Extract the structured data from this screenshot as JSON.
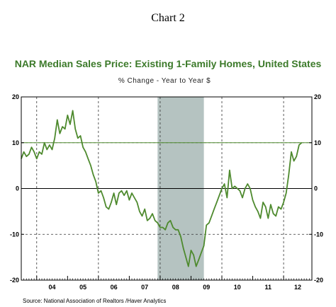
{
  "heading": "Chart 2",
  "source": "Source:  National Association of Realtors /Haver Analytics",
  "colors": {
    "title": "#3c7a2a",
    "series": "#4e8a2e",
    "recession": "#b5c3c1",
    "refline": "#4e8a2e"
  },
  "chart_data": {
    "type": "line",
    "title": "NAR Median Sales Price: Existing 1-Family Homes, United States",
    "subtitle": "% Change - Year to Year   $",
    "xlabel": "",
    "ylabel": "",
    "x_tick_labels": [
      "04",
      "05",
      "06",
      "07",
      "08",
      "09",
      "10",
      "11",
      "12"
    ],
    "xlim": [
      "2003-07",
      "2012-12"
    ],
    "ylim": [
      -20,
      20
    ],
    "y_ticks": [
      -20,
      -10,
      0,
      10,
      20
    ],
    "grid": true,
    "recession_shading": {
      "start": "2007-12",
      "end": "2009-06"
    },
    "reference_line": 10,
    "series": [
      {
        "name": "",
        "x": [
          "2003-07",
          "2003-08",
          "2003-09",
          "2003-10",
          "2003-11",
          "2003-12",
          "2004-01",
          "2004-02",
          "2004-03",
          "2004-04",
          "2004-05",
          "2004-06",
          "2004-07",
          "2004-08",
          "2004-09",
          "2004-10",
          "2004-11",
          "2004-12",
          "2005-01",
          "2005-02",
          "2005-03",
          "2005-04",
          "2005-05",
          "2005-06",
          "2005-07",
          "2005-08",
          "2005-09",
          "2005-10",
          "2005-11",
          "2005-12",
          "2006-01",
          "2006-02",
          "2006-03",
          "2006-04",
          "2006-05",
          "2006-06",
          "2006-07",
          "2006-08",
          "2006-09",
          "2006-10",
          "2006-11",
          "2006-12",
          "2007-01",
          "2007-02",
          "2007-03",
          "2007-04",
          "2007-05",
          "2007-06",
          "2007-07",
          "2007-08",
          "2007-09",
          "2007-10",
          "2007-11",
          "2007-12",
          "2008-01",
          "2008-02",
          "2008-03",
          "2008-04",
          "2008-05",
          "2008-06",
          "2008-07",
          "2008-08",
          "2008-09",
          "2008-10",
          "2008-11",
          "2008-12",
          "2009-01",
          "2009-02",
          "2009-03",
          "2009-04",
          "2009-05",
          "2009-06",
          "2009-07",
          "2009-08",
          "2009-09",
          "2009-10",
          "2009-11",
          "2009-12",
          "2010-01",
          "2010-02",
          "2010-03",
          "2010-04",
          "2010-05",
          "2010-06",
          "2010-07",
          "2010-08",
          "2010-09",
          "2010-10",
          "2010-11",
          "2010-12",
          "2011-01",
          "2011-02",
          "2011-03",
          "2011-04",
          "2011-05",
          "2011-06",
          "2011-07",
          "2011-08",
          "2011-09",
          "2011-10",
          "2011-11",
          "2011-12",
          "2012-01",
          "2012-02",
          "2012-03",
          "2012-04",
          "2012-05",
          "2012-06",
          "2012-07",
          "2012-08"
        ],
        "values": [
          6.5,
          8,
          7,
          7.5,
          9,
          8,
          6.5,
          8,
          7.5,
          10,
          8.5,
          9.5,
          8.5,
          11,
          15,
          12,
          13.5,
          13,
          16,
          14,
          17,
          13,
          11,
          11.5,
          9,
          8,
          6.5,
          5,
          3,
          1.5,
          -1,
          -0.5,
          -2,
          -4,
          -4.5,
          -3,
          -1,
          -3.5,
          -1,
          -0.5,
          -1.5,
          -0.5,
          -2.5,
          -1,
          -2,
          -3,
          -5,
          -6,
          -4.5,
          -7,
          -6.5,
          -5.5,
          -7,
          -7.5,
          -8.5,
          -8.5,
          -9,
          -7.5,
          -7,
          -8.5,
          -9,
          -9,
          -10.5,
          -13,
          -15,
          -17,
          -13.5,
          -14.5,
          -17,
          -15.5,
          -14,
          -12.5,
          -8,
          -7.5,
          -6,
          -4.5,
          -3,
          -1.5,
          0,
          1,
          -2,
          4,
          0,
          0.5,
          0,
          -0.5,
          -2,
          0,
          1,
          0,
          -2.5,
          -4,
          -5,
          -6.5,
          -3,
          -4,
          -6.5,
          -3.5,
          -5.5,
          -6,
          -4,
          -4.5,
          -3,
          -1,
          3,
          8,
          6,
          7,
          9.5,
          10
        ]
      }
    ]
  }
}
